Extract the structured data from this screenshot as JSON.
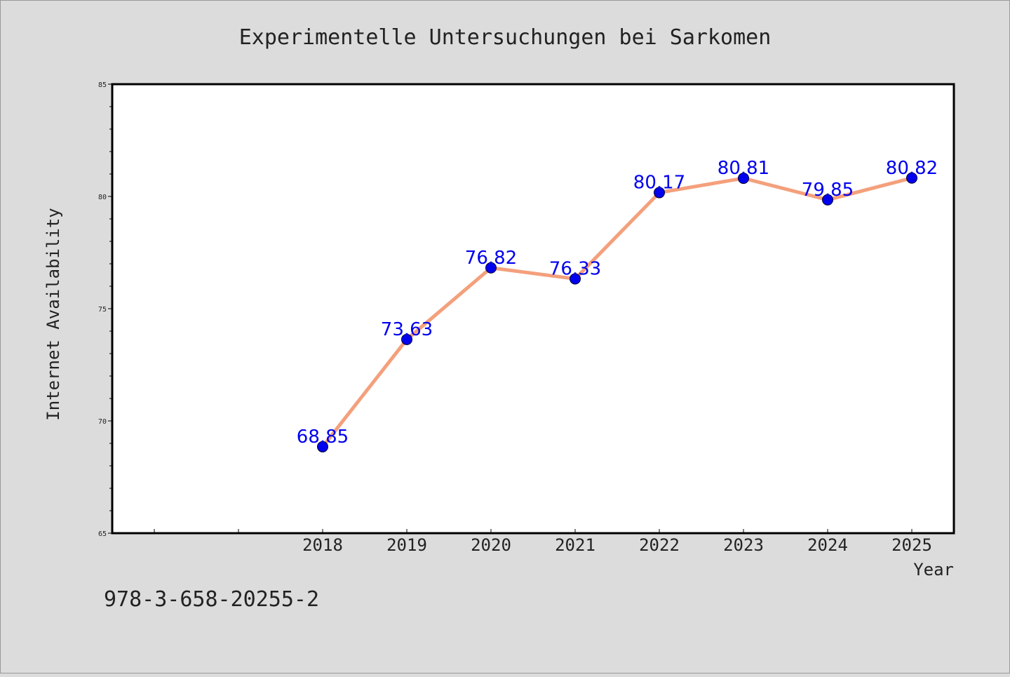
{
  "chart_data": {
    "type": "line",
    "title": "Experimentelle Untersuchungen bei Sarkomen",
    "xlabel": "Year",
    "ylabel": "Internet Availability",
    "categories": [
      "",
      "",
      "2018",
      "2019",
      "2020",
      "2021",
      "2022",
      "2023",
      "2024",
      "2025"
    ],
    "series": [
      {
        "x": [
          "2018",
          "2019",
          "2020",
          "2021",
          "2022",
          "2023",
          "2024",
          "2025"
        ],
        "values": [
          68.85,
          73.63,
          76.82,
          76.33,
          80.17,
          80.81,
          79.85,
          80.82
        ],
        "labels": [
          "68.85",
          "73.63",
          "76.82",
          "76.33",
          "80.17",
          "80.81",
          "79.85",
          "80.82"
        ]
      }
    ],
    "ylim": [
      65,
      85
    ],
    "yticks": [
      "65",
      "70",
      "75",
      "80",
      "85"
    ],
    "grid": false,
    "legend": "none",
    "colors": {
      "line": "#f4a07c",
      "marker": "#0000ee",
      "data_label": "#0000ee",
      "plot_background": "#ffffff",
      "figure_background": "#dcdcdc"
    }
  },
  "footnote": "978-3-658-20255-2"
}
